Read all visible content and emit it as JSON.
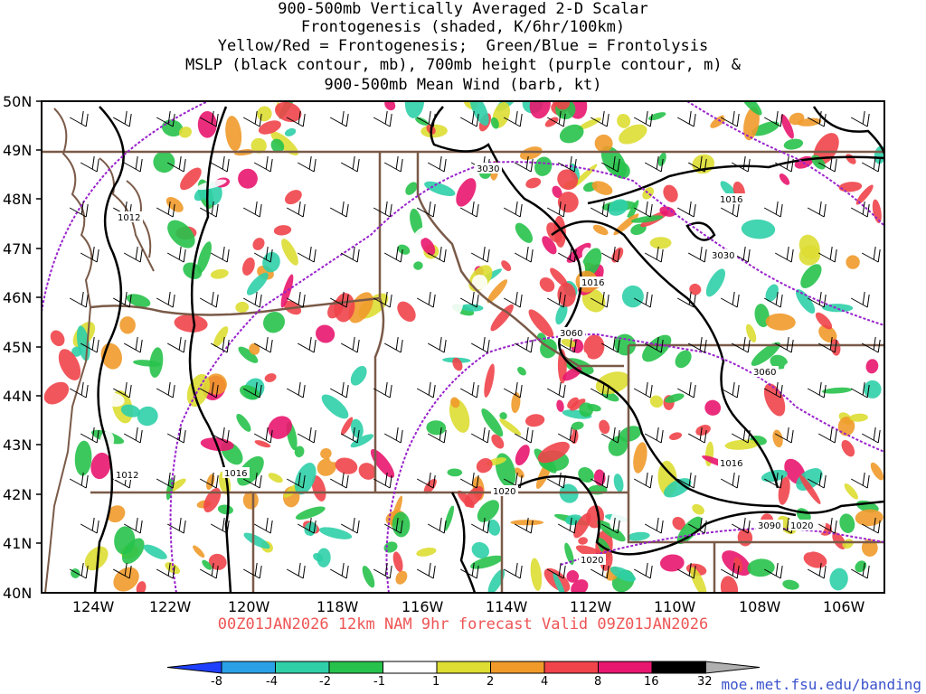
{
  "title": {
    "line1": "900-500mb Vertically Averaged 2-D Scalar",
    "line2": "Frontogenesis (shaded, K/6hr/100km)",
    "line3": "Yellow/Red = Frontogenesis;  Green/Blue = Frontolysis",
    "line4": "MSLP (black contour, mb), 700mb height (purple contour, m) &",
    "line5": "900-500mb Mean Wind (barb, kt)"
  },
  "axes": {
    "lat_labels": [
      "50N",
      "49N",
      "48N",
      "47N",
      "46N",
      "45N",
      "44N",
      "43N",
      "42N",
      "41N",
      "40N"
    ],
    "lon_labels": [
      "124W",
      "122W",
      "120W",
      "118W",
      "116W",
      "114W",
      "112W",
      "110W",
      "108W",
      "106W"
    ]
  },
  "contour_labels": {
    "mslp": [
      "1012",
      "1012",
      "1016",
      "1016",
      "1016",
      "1016",
      "1020",
      "1020",
      "1020"
    ],
    "height": [
      "3030",
      "3030",
      "3060",
      "3060",
      "3090"
    ]
  },
  "valid_text": "00Z01JAN2026 12km NAM 9hr forecast Valid 09Z01JAN2026",
  "credit": "moe.met.fsu.edu/banding",
  "colorbar": {
    "labels": [
      "-8",
      "-4",
      "-2",
      "-1",
      "1",
      "2",
      "4",
      "8",
      "16",
      "32"
    ],
    "colors": [
      "#1f3fff",
      "#2aa0e6",
      "#2fcfa8",
      "#27c24b",
      "#ffffff",
      "#dddd33",
      "#f09a2a",
      "#f0444a",
      "#e8166e",
      "#000000",
      "#b0b0b0"
    ]
  },
  "colors": {
    "mslp_contour": "#000000",
    "height_contour": "#9922cc",
    "borders": "#7a5a48",
    "credit": "#3a52cc",
    "valid_text": "#ee5555"
  }
}
